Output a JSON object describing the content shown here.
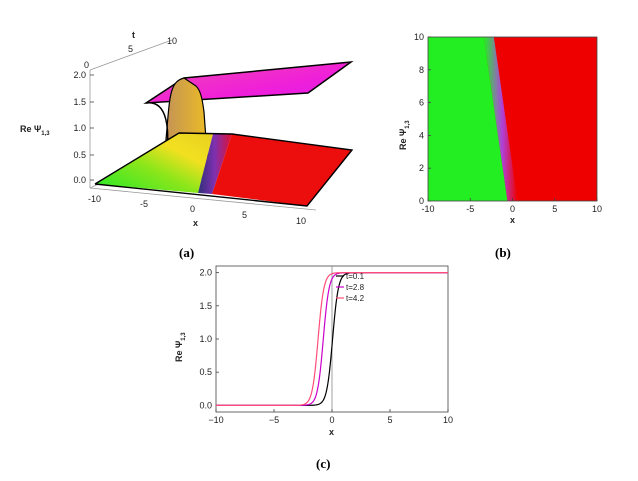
{
  "chart_data": [
    {
      "panel": "(a)",
      "type": "surface",
      "zlabel": "Re Ψ1,3",
      "xlabel": "x",
      "tlabel": "t",
      "x_ticks": [
        "-10",
        "-5",
        "0",
        "5",
        "10"
      ],
      "t_ticks": [
        "0",
        "5",
        "10"
      ],
      "z_ticks": [
        "0.0",
        "0.5",
        "1.0",
        "1.5",
        "2.0"
      ],
      "xlim": [
        -10,
        10
      ],
      "tlim": [
        0,
        10
      ],
      "zlim": [
        0,
        2
      ],
      "low_level": 0.0,
      "high_level": 2.0
    },
    {
      "panel": "(b)",
      "type": "heatmap",
      "ylabel": "Re Ψ1,3",
      "xlabel": "x",
      "x_ticks": [
        "-10",
        "-5",
        "0",
        "5",
        "10"
      ],
      "y_ticks": [
        "0",
        "2",
        "4",
        "6",
        "8",
        "10"
      ],
      "xlim": [
        -10,
        10
      ],
      "ylim": [
        0,
        10
      ],
      "boundary": {
        "x_at_y0": 0.0,
        "x_at_y10": -2.8
      },
      "left_color": "#22ee22",
      "right_color": "#ee0000",
      "edge_color": "#9a4fd0"
    },
    {
      "panel": "(c)",
      "type": "line",
      "ylabel": "Re Ψ1,3",
      "xlabel": "x",
      "x_ticks": [
        "-10",
        "-5",
        "0",
        "5",
        "10"
      ],
      "y_ticks": [
        "0.0",
        "0.5",
        "1.0",
        "1.5",
        "2.0"
      ],
      "xlim": [
        -10,
        10
      ],
      "ylim": [
        -0.1,
        2.1
      ],
      "series": [
        {
          "name": "t=0.1",
          "color": "#000000",
          "center": 0.05,
          "level": 2.0
        },
        {
          "name": "t=2.8",
          "color": "#cc00cc",
          "center": -0.75,
          "level": 2.0
        },
        {
          "name": "t=4.2",
          "color": "#ff4d7a",
          "center": -1.2,
          "level": 2.0
        }
      ],
      "legend": "top-right"
    }
  ],
  "captions": {
    "a": "(a)",
    "b": "(b)",
    "c": "(c)"
  }
}
